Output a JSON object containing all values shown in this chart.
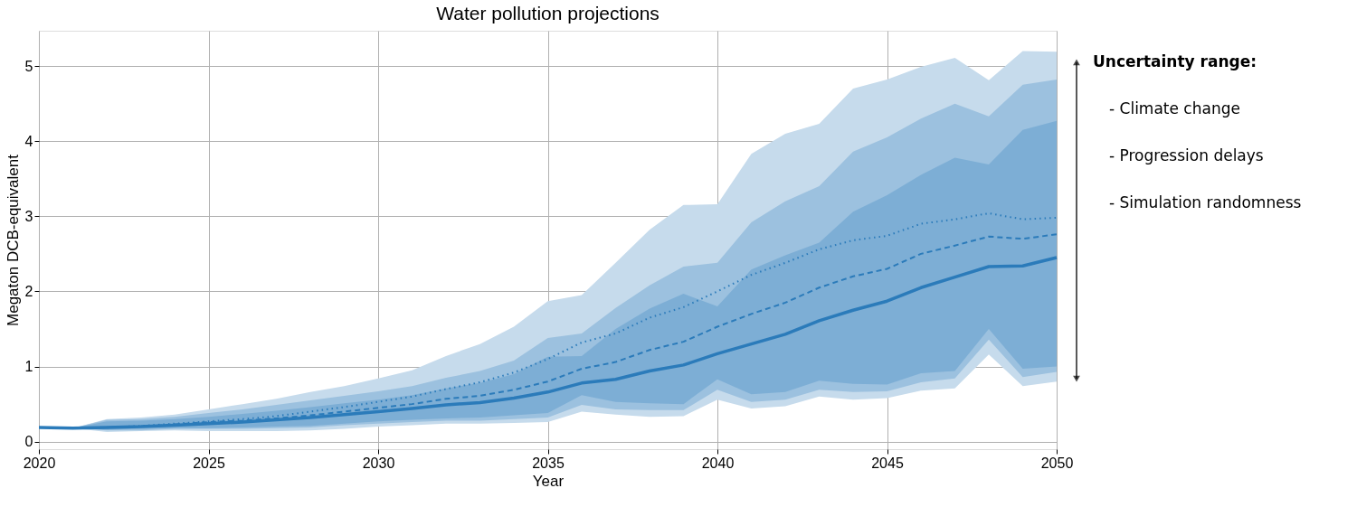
{
  "chart_data": {
    "type": "line",
    "title": "Water pollution projections",
    "xlabel": "Year",
    "ylabel": "Megaton DCB-equivalent",
    "x": [
      2020,
      2021,
      2022,
      2023,
      2024,
      2025,
      2026,
      2027,
      2028,
      2029,
      2030,
      2031,
      2032,
      2033,
      2034,
      2035,
      2036,
      2037,
      2038,
      2039,
      2040,
      2041,
      2042,
      2043,
      2044,
      2045,
      2046,
      2047,
      2048,
      2049,
      2050
    ],
    "xlim": [
      2020,
      2050
    ],
    "xticks": [
      2020,
      2025,
      2030,
      2035,
      2040,
      2045,
      2050
    ],
    "ylim": [
      -0.1,
      5.47
    ],
    "yticks": [
      0,
      1,
      2,
      3,
      4,
      5
    ],
    "grid": true,
    "legend": false,
    "series": [
      {
        "color": "#2b7bba",
        "line_style": "dotted",
        "values": [
          0.19,
          0.18,
          0.19,
          0.21,
          0.24,
          0.27,
          0.3,
          0.34,
          0.4,
          0.46,
          0.53,
          0.6,
          0.7,
          0.79,
          0.92,
          1.1,
          1.32,
          1.44,
          1.65,
          1.79,
          2.0,
          2.22,
          2.38,
          2.56,
          2.68,
          2.74,
          2.9,
          2.96,
          3.04,
          2.96,
          2.98
        ],
        "lower": [
          0.19,
          0.18,
          0.13,
          0.14,
          0.15,
          0.14,
          0.14,
          0.14,
          0.15,
          0.17,
          0.2,
          0.22,
          0.24,
          0.24,
          0.25,
          0.26,
          0.4,
          0.36,
          0.33,
          0.34,
          0.56,
          0.44,
          0.47,
          0.6,
          0.56,
          0.58,
          0.68,
          0.71,
          1.16,
          0.74,
          0.8
        ],
        "upper": [
          0.19,
          0.18,
          0.3,
          0.32,
          0.36,
          0.43,
          0.5,
          0.57,
          0.66,
          0.74,
          0.84,
          0.95,
          1.14,
          1.3,
          1.53,
          1.87,
          1.95,
          2.38,
          2.82,
          3.15,
          3.16,
          3.83,
          4.1,
          4.23,
          4.7,
          4.82,
          4.99,
          5.11,
          4.81,
          5.2,
          5.19
        ]
      },
      {
        "color": "#2b7bba",
        "line_style": "dashed",
        "values": [
          0.19,
          0.18,
          0.19,
          0.2,
          0.23,
          0.26,
          0.28,
          0.31,
          0.35,
          0.4,
          0.45,
          0.5,
          0.57,
          0.61,
          0.69,
          0.8,
          0.97,
          1.06,
          1.22,
          1.33,
          1.53,
          1.7,
          1.85,
          2.05,
          2.2,
          2.3,
          2.5,
          2.61,
          2.73,
          2.7,
          2.76
        ],
        "lower": [
          0.19,
          0.18,
          0.15,
          0.15,
          0.17,
          0.17,
          0.17,
          0.18,
          0.19,
          0.22,
          0.24,
          0.26,
          0.28,
          0.28,
          0.3,
          0.32,
          0.49,
          0.43,
          0.42,
          0.42,
          0.69,
          0.53,
          0.56,
          0.69,
          0.66,
          0.67,
          0.79,
          0.84,
          1.36,
          0.86,
          0.93
        ],
        "upper": [
          0.19,
          0.18,
          0.29,
          0.3,
          0.33,
          0.38,
          0.43,
          0.49,
          0.55,
          0.61,
          0.67,
          0.74,
          0.85,
          0.94,
          1.08,
          1.38,
          1.44,
          1.78,
          2.08,
          2.33,
          2.38,
          2.92,
          3.2,
          3.4,
          3.86,
          4.05,
          4.3,
          4.5,
          4.33,
          4.75,
          4.82
        ]
      },
      {
        "color": "#2b7bba",
        "line_style": "solid",
        "values": [
          0.19,
          0.18,
          0.19,
          0.2,
          0.22,
          0.24,
          0.26,
          0.29,
          0.32,
          0.36,
          0.4,
          0.44,
          0.49,
          0.52,
          0.58,
          0.66,
          0.78,
          0.83,
          0.94,
          1.02,
          1.17,
          1.3,
          1.43,
          1.61,
          1.75,
          1.87,
          2.05,
          2.19,
          2.33,
          2.34,
          2.45
        ],
        "lower": [
          0.19,
          0.18,
          0.16,
          0.17,
          0.18,
          0.18,
          0.19,
          0.2,
          0.21,
          0.24,
          0.27,
          0.29,
          0.31,
          0.32,
          0.35,
          0.38,
          0.62,
          0.53,
          0.51,
          0.5,
          0.83,
          0.63,
          0.66,
          0.81,
          0.77,
          0.76,
          0.91,
          0.94,
          1.5,
          0.97,
          1.0
        ],
        "upper": [
          0.19,
          0.18,
          0.27,
          0.28,
          0.3,
          0.33,
          0.37,
          0.41,
          0.46,
          0.51,
          0.56,
          0.62,
          0.71,
          0.78,
          0.9,
          1.13,
          1.14,
          1.5,
          1.77,
          1.97,
          1.8,
          2.29,
          2.48,
          2.65,
          3.06,
          3.28,
          3.55,
          3.78,
          3.69,
          4.15,
          4.27
        ]
      }
    ],
    "annotations": [
      "Uncertainty range:",
      "- Climate change",
      "- Progression delays",
      "- Simulation randomness"
    ]
  }
}
